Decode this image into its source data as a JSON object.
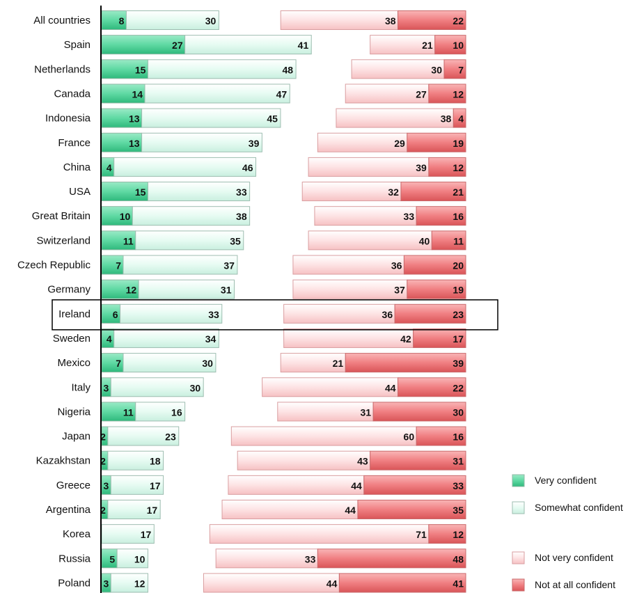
{
  "chart_data": {
    "type": "bar",
    "stacked": true,
    "diverging": true,
    "categories": [
      "All countries",
      "Spain",
      "Netherlands",
      "Canada",
      "Indonesia",
      "France",
      "China",
      "USA",
      "Great Britain",
      "Switzerland",
      "Czech Republic",
      "Germany",
      "Ireland",
      "Sweden",
      "Mexico",
      "Italy",
      "Nigeria",
      "Japan",
      "Kazakhstan",
      "Greece",
      "Argentina",
      "Korea",
      "Russia",
      "Poland"
    ],
    "highlighted_category": "Ireland",
    "series": [
      {
        "name": "Very confident",
        "side": "positive",
        "color": "#5fd9a3",
        "values": [
          8,
          27,
          15,
          14,
          13,
          13,
          4,
          15,
          10,
          11,
          7,
          12,
          6,
          4,
          7,
          3,
          11,
          2,
          2,
          3,
          2,
          0,
          5,
          3
        ]
      },
      {
        "name": "Somewhat confident",
        "side": "positive",
        "color": "#e6fbf2",
        "values": [
          30,
          41,
          48,
          47,
          45,
          39,
          46,
          33,
          38,
          35,
          37,
          31,
          33,
          34,
          30,
          30,
          16,
          23,
          18,
          17,
          17,
          17,
          10,
          12
        ]
      },
      {
        "name": "Not very confident",
        "side": "negative",
        "color": "#fde3e4",
        "values": [
          38,
          21,
          30,
          27,
          38,
          29,
          39,
          32,
          33,
          40,
          36,
          37,
          36,
          42,
          21,
          44,
          31,
          60,
          43,
          44,
          44,
          71,
          33,
          44
        ]
      },
      {
        "name": "Not at all confident",
        "side": "negative",
        "color": "#f48a8c",
        "values": [
          22,
          10,
          7,
          12,
          4,
          19,
          12,
          21,
          16,
          11,
          20,
          19,
          23,
          17,
          39,
          22,
          30,
          16,
          31,
          33,
          35,
          12,
          48,
          41
        ]
      }
    ],
    "legend": "right",
    "grid": false
  }
}
